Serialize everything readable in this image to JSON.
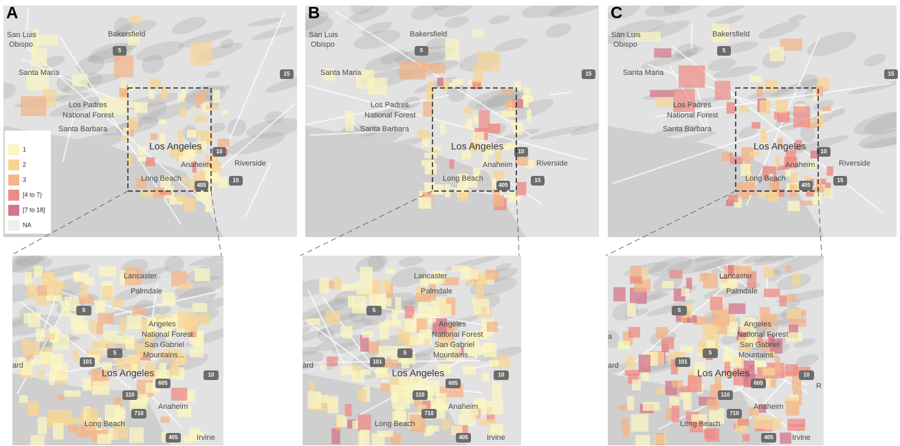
{
  "panels": [
    {
      "letter": "A",
      "map_labels": [
        "San Luis",
        "Obispo",
        "Bakersfield",
        "Santa Maria",
        "Los Padres",
        "National Forest",
        "Santa Barbara",
        "Los Angeles",
        "Anaheim",
        "Riverside",
        "Long Beach",
        "5",
        "15",
        "10",
        "405",
        "15"
      ],
      "zoom_labels": [
        "Lancaster",
        "Palmdale",
        "Angeles",
        "National Forest",
        "San Gabriel",
        "Mountains...",
        "Los Angeles",
        "Anaheim",
        "Long Beach",
        "Irvine",
        "ard",
        "5",
        "5",
        "101",
        "110",
        "605",
        "10",
        "710",
        "405"
      ]
    },
    {
      "letter": "B",
      "map_labels": [
        "San Luis",
        "Obispo",
        "Bakersfield",
        "Santa Maria",
        "Los Padres",
        "National Forest",
        "Santa Barbara",
        "Los Angeles",
        "Anaheim",
        "Riverside",
        "Long Beach",
        "5",
        "15",
        "10",
        "405",
        "15"
      ],
      "zoom_labels": [
        "Lancaster",
        "Palmdale",
        "Angeles",
        "National Forest",
        "San Gabriel",
        "Mountains...",
        "Los Angeles",
        "Anaheim",
        "Long Beach",
        "Irvine",
        "ard",
        "5",
        "5",
        "101",
        "110",
        "605",
        "10",
        "710",
        "405"
      ]
    },
    {
      "letter": "C",
      "map_labels": [
        "San Luis",
        "Obispo",
        "Bakersfield",
        "Santa Maria",
        "Los Padres",
        "National Forest",
        "Santa Barbara",
        "Los Angeles",
        "Anaheim",
        "Riverside",
        "Long Beach",
        "5",
        "15",
        "10",
        "405",
        "15"
      ],
      "zoom_labels": [
        "Lancaster",
        "Palmdale",
        "Angeles",
        "National Forest",
        "San Gabriel",
        "Mountains...",
        "Los Angeles",
        "Anaheim",
        "Long Beach",
        "Irvine",
        "ard",
        "5",
        "5",
        "101",
        "110",
        "605",
        "10",
        "710",
        "405",
        "a",
        "R"
      ]
    }
  ],
  "legend": {
    "items": [
      {
        "label": "1",
        "color": "#fbf5c0"
      },
      {
        "label": "2",
        "color": "#f7d595"
      },
      {
        "label": "3",
        "color": "#f4b487"
      },
      {
        "label": "[4 to 7)",
        "color": "#ee8b84"
      },
      {
        "label": "[7 to 18]",
        "color": "#d4758a"
      },
      {
        "label": "NA",
        "color": "#eeeeee"
      }
    ]
  }
}
